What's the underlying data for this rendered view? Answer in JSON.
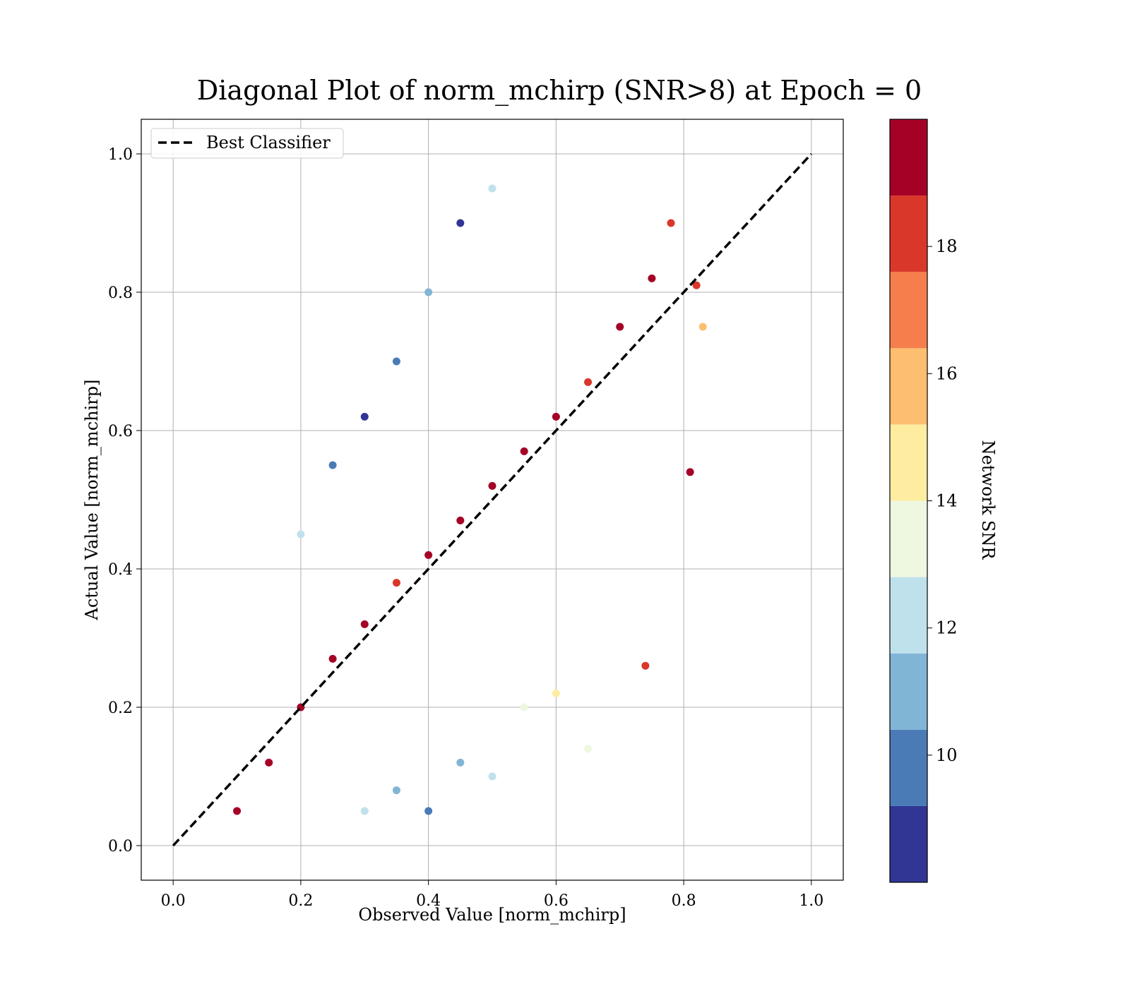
{
  "chart_data": {
    "type": "scatter",
    "title": "Diagonal Plot of norm_mchirp (SNR>8) at Epoch = 0",
    "xlabel": "Observed Value [norm_mchirp]",
    "ylabel": "Actual Value [norm_mchirp]",
    "xlim": [
      -0.05,
      1.05
    ],
    "ylim": [
      -0.05,
      1.05
    ],
    "xticks": [
      "0.0",
      "0.2",
      "0.4",
      "0.6",
      "0.8",
      "1.0"
    ],
    "yticks": [
      "0.0",
      "0.2",
      "0.4",
      "0.6",
      "0.8",
      "1.0"
    ],
    "grid": true,
    "legend": {
      "position": "top-left",
      "entries": [
        {
          "label": "Best Classifier",
          "style": "dashed",
          "color": "#000000"
        }
      ]
    },
    "reference_line": {
      "label": "Best Classifier",
      "x": [
        0.0,
        1.0
      ],
      "y": [
        0.0,
        1.0
      ]
    },
    "colorbar": {
      "label": "Network SNR",
      "range": [
        8,
        20
      ],
      "ticks": [
        "10",
        "12",
        "14",
        "16",
        "18"
      ],
      "bins": [
        {
          "from": 8,
          "to": 9.2,
          "color": "#313695"
        },
        {
          "from": 9.2,
          "to": 10.4,
          "color": "#4a7bb7"
        },
        {
          "from": 10.4,
          "to": 11.6,
          "color": "#81b5d6"
        },
        {
          "from": 11.6,
          "to": 12.8,
          "color": "#bfe1eb"
        },
        {
          "from": 12.8,
          "to": 14.0,
          "color": "#eef7e0"
        },
        {
          "from": 14.0,
          "to": 15.2,
          "color": "#feeda1"
        },
        {
          "from": 15.2,
          "to": 16.4,
          "color": "#fdbe70"
        },
        {
          "from": 16.4,
          "to": 17.6,
          "color": "#f57e4c"
        },
        {
          "from": 17.6,
          "to": 18.8,
          "color": "#da372b"
        },
        {
          "from": 18.8,
          "to": 20.0,
          "color": "#a50026"
        }
      ]
    },
    "series": [
      {
        "marker": "circle",
        "color_by": "Network SNR",
        "points": [
          {
            "x": 0.1,
            "y": 0.05,
            "snr": 19.5
          },
          {
            "x": 0.15,
            "y": 0.12,
            "snr": 19.2
          },
          {
            "x": 0.2,
            "y": 0.2,
            "snr": 19.6
          },
          {
            "x": 0.25,
            "y": 0.27,
            "snr": 19.0
          },
          {
            "x": 0.3,
            "y": 0.32,
            "snr": 19.7
          },
          {
            "x": 0.35,
            "y": 0.38,
            "snr": 18.4
          },
          {
            "x": 0.4,
            "y": 0.42,
            "snr": 19.5
          },
          {
            "x": 0.45,
            "y": 0.47,
            "snr": 19.8
          },
          {
            "x": 0.5,
            "y": 0.52,
            "snr": 18.9
          },
          {
            "x": 0.55,
            "y": 0.57,
            "snr": 19.4
          },
          {
            "x": 0.6,
            "y": 0.62,
            "snr": 19.9
          },
          {
            "x": 0.65,
            "y": 0.67,
            "snr": 18.2
          },
          {
            "x": 0.7,
            "y": 0.75,
            "snr": 19.6
          },
          {
            "x": 0.75,
            "y": 0.82,
            "snr": 19.3
          },
          {
            "x": 0.78,
            "y": 0.9,
            "snr": 18.6
          },
          {
            "x": 0.3,
            "y": 0.62,
            "snr": 9.0
          },
          {
            "x": 0.35,
            "y": 0.7,
            "snr": 10.2
          },
          {
            "x": 0.4,
            "y": 0.8,
            "snr": 11.5
          },
          {
            "x": 0.45,
            "y": 0.9,
            "snr": 8.6
          },
          {
            "x": 0.5,
            "y": 0.95,
            "snr": 12.5
          },
          {
            "x": 0.3,
            "y": 0.05,
            "snr": 12.2
          },
          {
            "x": 0.35,
            "y": 0.08,
            "snr": 11.1
          },
          {
            "x": 0.4,
            "y": 0.05,
            "snr": 9.6
          },
          {
            "x": 0.45,
            "y": 0.12,
            "snr": 10.4
          },
          {
            "x": 0.5,
            "y": 0.1,
            "snr": 11.8
          },
          {
            "x": 0.55,
            "y": 0.2,
            "snr": 13.5
          },
          {
            "x": 0.6,
            "y": 0.22,
            "snr": 14.6
          },
          {
            "x": 0.65,
            "y": 0.14,
            "snr": 13.2
          },
          {
            "x": 0.2,
            "y": 0.45,
            "snr": 12.0
          },
          {
            "x": 0.25,
            "y": 0.55,
            "snr": 9.4
          },
          {
            "x": 0.74,
            "y": 0.26,
            "snr": 18.2
          },
          {
            "x": 0.81,
            "y": 0.54,
            "snr": 19.5
          },
          {
            "x": 0.83,
            "y": 0.75,
            "snr": 15.3
          },
          {
            "x": 0.82,
            "y": 0.81,
            "snr": 18.3
          }
        ]
      }
    ]
  }
}
